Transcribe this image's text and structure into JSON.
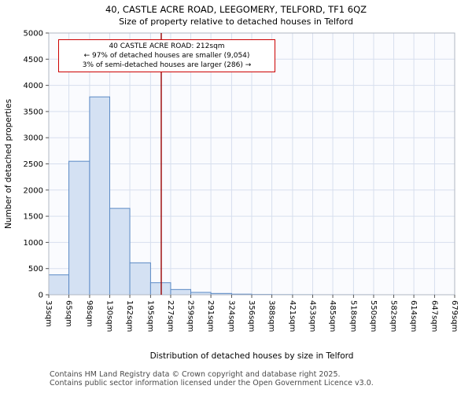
{
  "title": {
    "line1": "40, CASTLE ACRE ROAD, LEEGOMERY, TELFORD, TF1 6QZ",
    "line2": "Size of property relative to detached houses in Telford"
  },
  "chart_data": {
    "type": "bar",
    "subtype": "histogram",
    "title": "40, CASTLE ACRE ROAD, LEEGOMERY, TELFORD, TF1 6QZ",
    "subtitle": "Size of property relative to detached houses in Telford",
    "xlabel": "Distribution of detached houses by size in Telford",
    "ylabel": "Number of detached properties",
    "ylim": [
      0,
      5000
    ],
    "y_ticks": [
      0,
      500,
      1000,
      1500,
      2000,
      2500,
      3000,
      3500,
      4000,
      4500,
      5000
    ],
    "grid": true,
    "legend": "none",
    "bin_edges_sqm": [
      33,
      65,
      98,
      130,
      162,
      195,
      227,
      259,
      291,
      324,
      356,
      388,
      421,
      453,
      485,
      518,
      550,
      582,
      614,
      647,
      679
    ],
    "x_tick_labels": [
      "33sqm",
      "65sqm",
      "98sqm",
      "130sqm",
      "162sqm",
      "195sqm",
      "227sqm",
      "259sqm",
      "291sqm",
      "324sqm",
      "356sqm",
      "388sqm",
      "421sqm",
      "453sqm",
      "485sqm",
      "518sqm",
      "550sqm",
      "582sqm",
      "614sqm",
      "647sqm",
      "679sqm"
    ],
    "values": [
      380,
      2550,
      3780,
      1650,
      610,
      230,
      100,
      45,
      25,
      12,
      6,
      3,
      2,
      1,
      1,
      1,
      0,
      0,
      0,
      0
    ],
    "colors": {
      "bar_fill": "#d4e1f3",
      "bar_stroke": "#5b8ac5",
      "grid": "#d7dfee",
      "plot_border": "#b0b7c3",
      "marker_line": "#990000",
      "plot_bg": "#fafbfe"
    },
    "marker": {
      "value_sqm": 212,
      "label": "40 CASTLE ACRE ROAD: 212sqm"
    },
    "annotation": {
      "line1": "40 CASTLE ACRE ROAD: 212sqm",
      "line2": "← 97% of detached houses are smaller (9,054)",
      "line3": "3% of semi-detached houses are larger (286) →"
    }
  },
  "footer": {
    "line1": "Contains HM Land Registry data © Crown copyright and database right 2025.",
    "line2": "Contains public sector information licensed under the Open Government Licence v3.0."
  }
}
